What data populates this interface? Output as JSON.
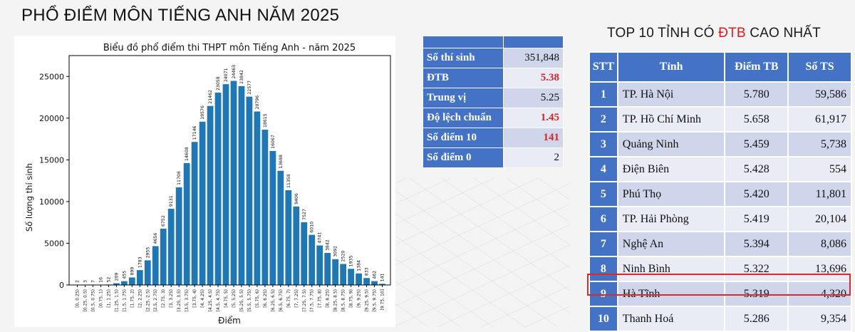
{
  "page": {
    "title": "PHỔ ĐIỂM MÔN TIẾNG ANH NĂM 2025"
  },
  "chart_data": {
    "type": "bar",
    "title": "Biểu đồ phổ điểm thi THPT môn Tiếng Anh - năm 2025",
    "xlabel": "Điểm",
    "ylabel": "Số lượng thí sinh",
    "ylim": [
      0,
      27500
    ],
    "yticks": [
      0,
      5000,
      10000,
      15000,
      20000,
      25000
    ],
    "grid": false,
    "bar_color": "#1f77b4",
    "categories": [
      "[0, 0.25)",
      "[0.25, 0.5)",
      "[0.5, 0.75)",
      "[0.75, 1)",
      "[1, 1.25)",
      "[1.25, 1.5)",
      "[1.5, 1.75)",
      "[1.75, 2)",
      "[2, 2.25)",
      "[2.25, 2.5)",
      "[2.5, 2.75)",
      "[2.75, 3)",
      "[3, 3.25)",
      "[3.25, 3.5)",
      "[3.5, 3.75)",
      "[3.75, 4)",
      "[4, 4.25)",
      "[4.25, 4.5)",
      "[4.5, 4.75)",
      "[4.75, 5)",
      "[5, 5.25)",
      "[5.25, 5.5)",
      "[5.5, 5.75)",
      "[5.75, 6)",
      "[6, 6.25)",
      "[6.25, 6.5)",
      "[6.5, 6.75)",
      "[6.75, 7)",
      "[7, 7.25)",
      "[7.25, 7.5)",
      "[7.5, 7.75)",
      "[7.75, 8)",
      "[8, 8.25)",
      "[8.25, 8.5)",
      "[8.5, 8.75)",
      "[8.75, 9)",
      "[9, 9.25)",
      "[9.25, 9.5)",
      "[9.5, 9.75)",
      "[9.75, 10]"
    ],
    "values": [
      2,
      3,
      7,
      16,
      52,
      209,
      455,
      899,
      1783,
      2955,
      4656,
      6752,
      9131,
      11708,
      14608,
      17146,
      19576,
      21462,
      23058,
      24071,
      24463,
      23842,
      22577,
      20796,
      18615,
      16067,
      13688,
      11358,
      9406,
      7527,
      6010,
      4741,
      3842,
      3092,
      2520,
      1935,
      1384,
      833,
      462,
      141
    ]
  },
  "stats": {
    "rows": [
      {
        "label": "Số thí sinh",
        "value": "351,848",
        "highlight": false
      },
      {
        "label": "ĐTB",
        "value": "5.38",
        "highlight": true
      },
      {
        "label": "Trung vị",
        "value": "5.25",
        "highlight": false
      },
      {
        "label": "Độ lệch chuẩn",
        "value": "1.45",
        "highlight": true
      },
      {
        "label": "Số điểm 10",
        "value": "141",
        "highlight": true
      },
      {
        "label": "Số điểm 0",
        "value": "2",
        "highlight": false
      }
    ]
  },
  "top10": {
    "title_prefix": "TOP 10 TỈNH CÓ ",
    "title_accent": "ĐTB",
    "title_suffix": " CAO NHẤT",
    "accent_color": "#e01b1b",
    "headers": [
      "STT",
      "Tỉnh",
      "Điểm TB",
      "Số TS"
    ],
    "rows": [
      {
        "stt": "1",
        "province": "TP. Hà Nội",
        "avg": "5.780",
        "count": "59,586"
      },
      {
        "stt": "2",
        "province": "TP. Hồ Chí Minh",
        "avg": "5.658",
        "count": "61,917"
      },
      {
        "stt": "3",
        "province": "Quảng Ninh",
        "avg": "5.459",
        "count": "5,738"
      },
      {
        "stt": "4",
        "province": "Điện Biên",
        "avg": "5.428",
        "count": "554"
      },
      {
        "stt": "5",
        "province": "Phú Thọ",
        "avg": "5.420",
        "count": "11,801"
      },
      {
        "stt": "6",
        "province": "TP. Hải Phòng",
        "avg": "5.419",
        "count": "20,104"
      },
      {
        "stt": "7",
        "province": "Nghệ An",
        "avg": "5.394",
        "count": "8,086"
      },
      {
        "stt": "8",
        "province": "Ninh Bình",
        "avg": "5.322",
        "count": "13,696"
      },
      {
        "stt": "9",
        "province": "Hà Tĩnh",
        "avg": "5.319",
        "count": "4,320"
      },
      {
        "stt": "10",
        "province": "Thanh Hoá",
        "avg": "5.286",
        "count": "9,354"
      }
    ],
    "highlighted_stt": "9"
  }
}
